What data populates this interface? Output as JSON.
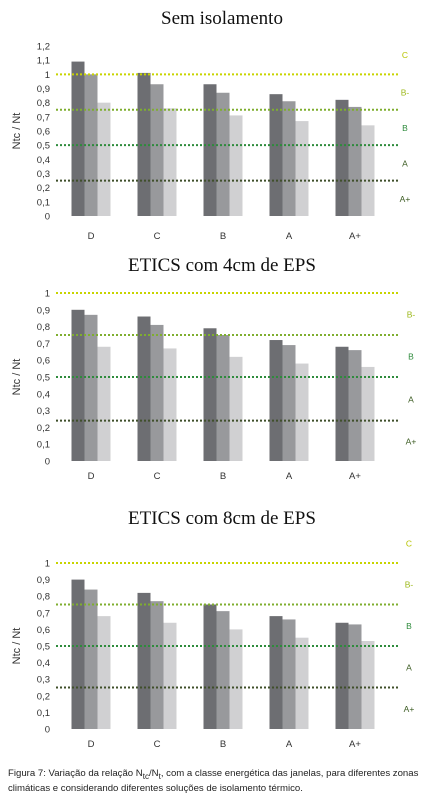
{
  "chart_data": [
    {
      "type": "bar",
      "title": "Sem isolamento",
      "ylabel": "Ntc / Nt",
      "xlabel": "",
      "categories": [
        "D",
        "C",
        "B",
        "A",
        "A+"
      ],
      "series": [
        {
          "values": [
            1.09,
            1.01,
            0.93,
            0.86,
            0.82
          ]
        },
        {
          "values": [
            1.0,
            0.93,
            0.87,
            0.81,
            0.77
          ]
        },
        {
          "values": [
            0.8,
            0.76,
            0.71,
            0.67,
            0.64
          ]
        }
      ],
      "ylim": [
        0,
        1.2
      ],
      "yticks": [
        "0",
        "0,1",
        "0,2",
        "0,3",
        "0,4",
        "0,5",
        "0,6",
        "0,7",
        "0,8",
        "0,9",
        "1",
        "1,1",
        "1,2"
      ],
      "ref_lines": [
        {
          "value": 1.0,
          "label": "C",
          "color": "#c8d400"
        },
        {
          "value": 0.75,
          "label": "B-",
          "color": "#7fae2f"
        },
        {
          "value": 0.5,
          "label": "B",
          "color": "#2e8b3c"
        },
        {
          "value": 0.25,
          "label": "A",
          "color": "#3f4f2a"
        }
      ],
      "band_labels": [
        "C",
        "B-",
        "B",
        "A",
        "A+"
      ]
    },
    {
      "type": "bar",
      "title": "ETICS com 4cm de EPS",
      "ylabel": "Ntc / Nt",
      "xlabel": "",
      "categories": [
        "D",
        "C",
        "B",
        "A",
        "A+"
      ],
      "series": [
        {
          "values": [
            0.9,
            0.86,
            0.79,
            0.72,
            0.68
          ]
        },
        {
          "values": [
            0.87,
            0.81,
            0.75,
            0.69,
            0.66
          ]
        },
        {
          "values": [
            0.68,
            0.67,
            0.62,
            0.58,
            0.56
          ]
        }
      ],
      "ylim": [
        0,
        1.0
      ],
      "yticks": [
        "0",
        "0,1",
        "0,2",
        "0,3",
        "0,4",
        "0,5",
        "0,6",
        "0,7",
        "0,8",
        "0,9",
        "1"
      ],
      "ref_lines": [
        {
          "value": 1.0,
          "label": "",
          "color": "#c8d400"
        },
        {
          "value": 0.75,
          "label": "B-",
          "color": "#7fae2f"
        },
        {
          "value": 0.5,
          "label": "B",
          "color": "#2e8b3c"
        },
        {
          "value": 0.24,
          "label": "A",
          "color": "#3f4f2a"
        }
      ],
      "band_labels": [
        "B-",
        "B",
        "A",
        "A+"
      ]
    },
    {
      "type": "bar",
      "title": "ETICS com 8cm de EPS",
      "ylabel": "Ntc / Nt",
      "xlabel": "",
      "categories": [
        "D",
        "C",
        "B",
        "A",
        "A+"
      ],
      "series": [
        {
          "values": [
            0.9,
            0.82,
            0.75,
            0.68,
            0.64
          ]
        },
        {
          "values": [
            0.84,
            0.77,
            0.71,
            0.66,
            0.63
          ]
        },
        {
          "values": [
            0.68,
            0.64,
            0.6,
            0.55,
            0.53
          ]
        }
      ],
      "ylim": [
        0,
        1.0
      ],
      "yticks": [
        "0",
        "0,1",
        "0,2",
        "0,3",
        "0,4",
        "0,5",
        "0,6",
        "0,7",
        "0,8",
        "0,9",
        "1"
      ],
      "ref_lines": [
        {
          "value": 1.0,
          "label": "C",
          "color": "#c8d400"
        },
        {
          "value": 0.75,
          "label": "B-",
          "color": "#7fae2f"
        },
        {
          "value": 0.5,
          "label": "B",
          "color": "#2e8b3c"
        },
        {
          "value": 0.25,
          "label": "A",
          "color": "#3f4f2a"
        }
      ],
      "band_labels": [
        "C",
        "B-",
        "B",
        "A",
        "A+"
      ]
    }
  ],
  "series_colors": [
    "#6d6e72",
    "#98999c",
    "#d0d0d2"
  ],
  "band_label_color": "#3a7d2c",
  "band_label_color_top": "#b8c400",
  "caption": {
    "prefix": "Figura 7: Variação da relação N",
    "sub1": "tc",
    "mid": "/N",
    "sub2": "t",
    "suffix": ", com a classe energética das janelas, para diferentes zonas climáticas e considerando diferentes soluções de isolamento térmico."
  }
}
